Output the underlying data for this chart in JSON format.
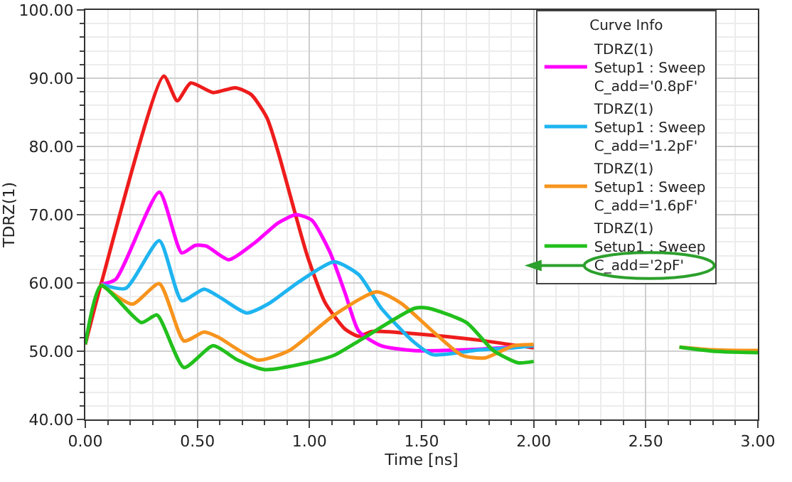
{
  "chart_data": {
    "type": "line",
    "xlabel": "Time [ns]",
    "ylabel": "TDRZ(1)",
    "legend_title": "Curve Info",
    "xlim": [
      0,
      3
    ],
    "ylim": [
      40,
      100
    ],
    "xticks": [
      {
        "value": 0,
        "label": "0.00"
      },
      {
        "value": 0.5,
        "label": "0.50"
      },
      {
        "value": 1,
        "label": "1.00"
      },
      {
        "value": 1.5,
        "label": "1.50"
      },
      {
        "value": 2,
        "label": "2.00"
      },
      {
        "value": 2.5,
        "label": "2.50"
      },
      {
        "value": 3,
        "label": "3.00"
      }
    ],
    "yticks": [
      {
        "value": 40,
        "label": "40.00"
      },
      {
        "value": 50,
        "label": "50.00"
      },
      {
        "value": 60,
        "label": "60.00"
      },
      {
        "value": 70,
        "label": "70.00"
      },
      {
        "value": 80,
        "label": "80.00"
      },
      {
        "value": 90,
        "label": "90.00"
      },
      {
        "value": 100,
        "label": "100.00"
      }
    ],
    "grid": true,
    "legend": "top right",
    "marker": "none",
    "line_style": "solid",
    "series": [
      {
        "color": "#ee1c1c",
        "x": [
          0,
          0.07,
          0.35,
          0.41,
          0.47,
          0.57,
          0.67,
          0.74,
          0.81,
          0.86,
          0.93,
          0.99,
          1.07,
          1.16,
          1.22,
          1.28,
          1.49,
          1.76,
          1.91,
          2.0
        ],
        "values": [
          51,
          59.8,
          90.3,
          86.7,
          89.3,
          87.9,
          88.6,
          87.6,
          84.2,
          79.2,
          70.9,
          64,
          57.1,
          53.2,
          52.2,
          52.9,
          52.5,
          51.6,
          50.9,
          50.5
        ]
      },
      {
        "name": "TDRZ(1)\nSetup1 : Sweep\nC_add='0.8pF'",
        "color": "#ff00ff",
        "x": [
          0.07,
          0.135,
          0.33,
          0.43,
          0.49,
          0.54,
          0.64,
          0.76,
          0.86,
          0.94,
          1.01,
          1.09,
          1.16,
          1.22,
          1.32,
          1.46,
          1.7,
          2.0
        ],
        "values": [
          59.8,
          60.5,
          73.3,
          64.4,
          65.5,
          65.4,
          63.4,
          66,
          68.8,
          70,
          69.2,
          64.6,
          58.4,
          52.9,
          50.8,
          50.1,
          50.2,
          50.8
        ]
      },
      {
        "name": "TDRZ(1)\nSetup1 : Sweep\nC_add='1.2pF'",
        "color": "#1eb4f0",
        "x": [
          0.07,
          0.18,
          0.33,
          0.43,
          0.53,
          0.61,
          0.72,
          0.82,
          0.95,
          1.11,
          1.22,
          1.32,
          1.46,
          1.55,
          1.76,
          1.91,
          2.0
        ],
        "values": [
          59.8,
          59.2,
          66.2,
          57.4,
          59.1,
          57.7,
          55.6,
          57,
          60.1,
          63.1,
          61.2,
          56.3,
          51.5,
          49.5,
          50.2,
          50.5,
          50.8
        ]
      },
      {
        "name": "TDRZ(1)\nSetup1 : Sweep\nC_add='1.6pF'",
        "color": "#f7941d",
        "x": [
          0.07,
          0.21,
          0.33,
          0.44,
          0.53,
          0.59,
          0.77,
          0.91,
          1.11,
          1.3,
          1.41,
          1.55,
          1.68,
          1.78,
          1.91,
          2.0,
          2.3,
          2.65,
          2.8,
          3.0
        ],
        "values": [
          59.8,
          56.9,
          59.9,
          51.5,
          52.8,
          52.1,
          48.7,
          50.1,
          55.3,
          58.7,
          57,
          52.9,
          49.4,
          49,
          50.8,
          51,
          null,
          50.6,
          50.2,
          50.1
        ]
      },
      {
        "name": "TDRZ(1)\nSetup1 : Sweep\nC_add='2pF'",
        "color": "#22c01c",
        "x": [
          0,
          0.07,
          0.25,
          0.32,
          0.44,
          0.57,
          0.68,
          0.8,
          0.99,
          1.11,
          1.22,
          1.47,
          1.53,
          1.7,
          1.82,
          1.93,
          2.0,
          2.3,
          2.65,
          2.8,
          3.0
        ],
        "values": [
          51,
          59.6,
          54.2,
          55.3,
          47.6,
          50.8,
          48.7,
          47.3,
          48.3,
          49.4,
          51.5,
          56.3,
          56.3,
          54.2,
          50.1,
          48.3,
          48.5,
          null,
          50.6,
          50,
          49.8
        ]
      }
    ]
  }
}
